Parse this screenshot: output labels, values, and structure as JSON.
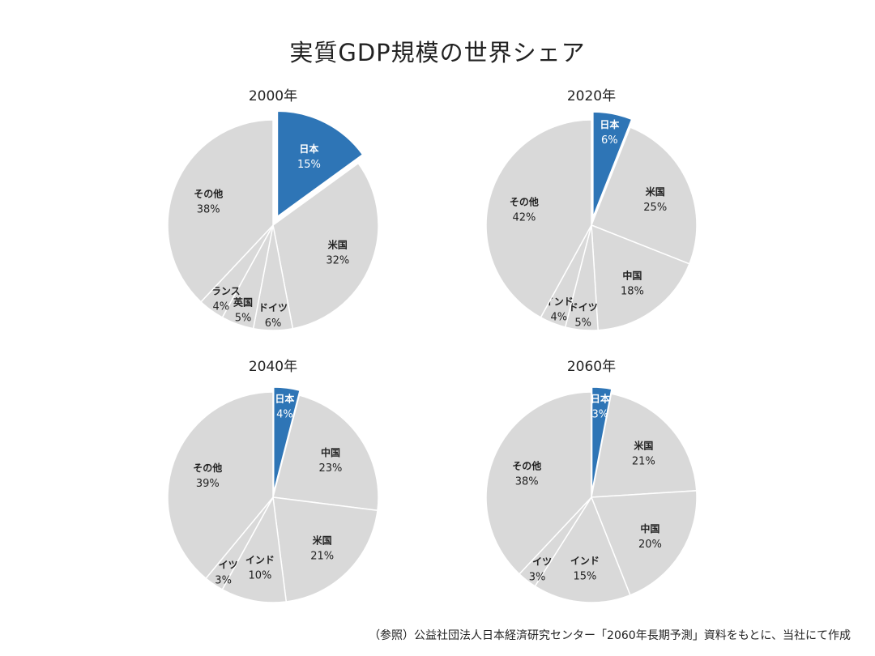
{
  "page": {
    "title": "実質GDP規模の世界シェア",
    "source": "（参照）公益社団法人日本経済研究センター「2060年長期予測」資料をもとに、当社にて作成"
  },
  "colors": {
    "highlight": "#2e75b6",
    "slice": "#d9d9d9",
    "border": "#ffffff"
  },
  "chart_data": [
    {
      "type": "pie",
      "title": "2000年",
      "slices": [
        {
          "label": "日本",
          "value": 15,
          "value_label": "15%",
          "exploded": true
        },
        {
          "label": "米国",
          "value": 32,
          "value_label": "32%"
        },
        {
          "label": "ドイツ",
          "value": 6,
          "value_label": "6%"
        },
        {
          "label": "英国",
          "value": 5,
          "value_label": "5%"
        },
        {
          "label": "フランス",
          "value": 4,
          "value_label": "4%"
        },
        {
          "label": "その他",
          "value": 38,
          "value_label": "38%"
        }
      ]
    },
    {
      "type": "pie",
      "title": "2020年",
      "slices": [
        {
          "label": "日本",
          "value": 6,
          "value_label": "6%",
          "exploded": true
        },
        {
          "label": "米国",
          "value": 25,
          "value_label": "25%"
        },
        {
          "label": "中国",
          "value": 18,
          "value_label": "18%"
        },
        {
          "label": "ドイツ",
          "value": 5,
          "value_label": "5%"
        },
        {
          "label": "インド",
          "value": 4,
          "value_label": "4%"
        },
        {
          "label": "その他",
          "value": 42,
          "value_label": "42%"
        }
      ]
    },
    {
      "type": "pie",
      "title": "2040年",
      "slices": [
        {
          "label": "日本",
          "value": 4,
          "value_label": "4%",
          "exploded": true
        },
        {
          "label": "中国",
          "value": 23,
          "value_label": "23%"
        },
        {
          "label": "米国",
          "value": 21,
          "value_label": "21%"
        },
        {
          "label": "インド",
          "value": 10,
          "value_label": "10%"
        },
        {
          "label": "ドイツ",
          "value": 3,
          "value_label": "3%"
        },
        {
          "label": "その他",
          "value": 39,
          "value_label": "39%"
        }
      ]
    },
    {
      "type": "pie",
      "title": "2060年",
      "slices": [
        {
          "label": "日本",
          "value": 3,
          "value_label": "3%",
          "exploded": true
        },
        {
          "label": "米国",
          "value": 21,
          "value_label": "21%"
        },
        {
          "label": "中国",
          "value": 20,
          "value_label": "20%"
        },
        {
          "label": "インド",
          "value": 15,
          "value_label": "15%"
        },
        {
          "label": "ドイツ",
          "value": 3,
          "value_label": "3%"
        },
        {
          "label": "その他",
          "value": 38,
          "value_label": "38%"
        }
      ]
    }
  ]
}
